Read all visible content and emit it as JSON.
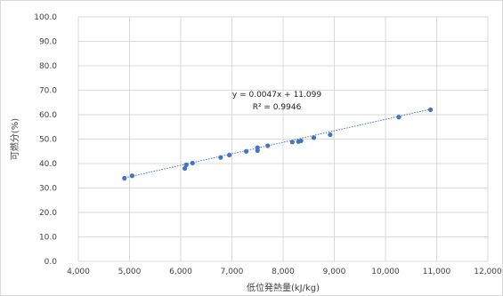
{
  "chart_data": {
    "type": "scatter",
    "xlabel": "低位発熱量(kJ/kg)",
    "ylabel": "可燃分(%)",
    "xlim": [
      4000,
      12000
    ],
    "ylim": [
      0,
      100
    ],
    "x_ticks": [
      "4,000",
      "5,000",
      "6,000",
      "7,000",
      "8,000",
      "9,000",
      "10,000",
      "11,000",
      "12,000"
    ],
    "y_ticks": [
      "0.0",
      "10.0",
      "20.0",
      "30.0",
      "40.0",
      "50.0",
      "60.0",
      "70.0",
      "80.0",
      "90.0",
      "100.0"
    ],
    "grid": true,
    "series": [
      {
        "points": [
          [
            4900,
            34.0
          ],
          [
            5050,
            35.0
          ],
          [
            6080,
            38.0
          ],
          [
            6110,
            39.5
          ],
          [
            6230,
            40.2
          ],
          [
            6780,
            42.5
          ],
          [
            6950,
            43.5
          ],
          [
            7280,
            45.0
          ],
          [
            7500,
            45.3
          ],
          [
            7500,
            46.5
          ],
          [
            7700,
            47.3
          ],
          [
            8180,
            48.8
          ],
          [
            8300,
            49.0
          ],
          [
            8350,
            49.3
          ],
          [
            8600,
            50.6
          ],
          [
            8920,
            51.8
          ],
          [
            10260,
            59.0
          ],
          [
            10880,
            62.0
          ]
        ]
      }
    ],
    "trendline": {
      "slope": 0.0047,
      "intercept": 11.099,
      "equation": "y = 0.0047x + 11.099",
      "r2": "R² = 0.9946"
    },
    "colors": {
      "marker": "#4472c4",
      "trend": "#4472c4",
      "grid": "#d9d9d9"
    }
  }
}
